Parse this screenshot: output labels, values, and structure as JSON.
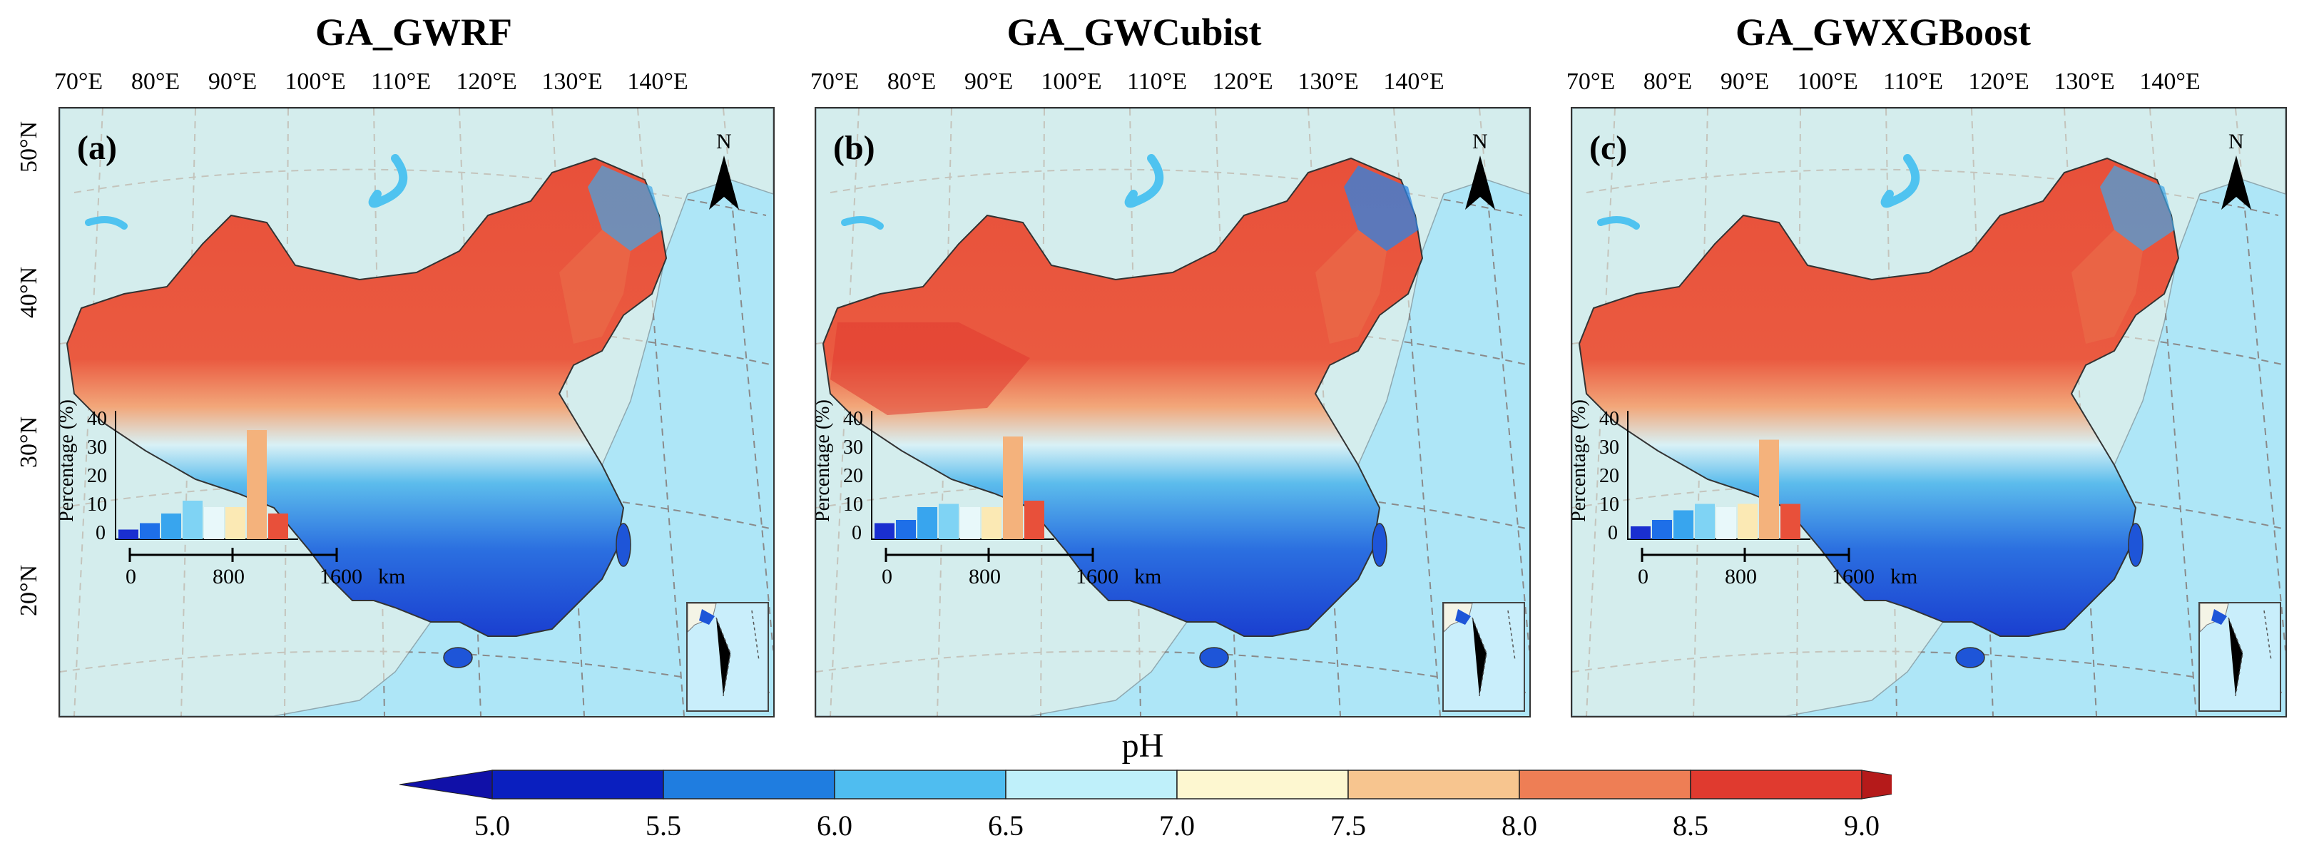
{
  "panels": [
    {
      "title": "GA_GWRF",
      "label": "(a)",
      "hist": [
        3,
        5,
        8,
        12,
        10,
        10,
        34,
        8
      ]
    },
    {
      "title": "GA_GWCubist",
      "label": "(b)",
      "hist": [
        5,
        6,
        10,
        11,
        10,
        10,
        32,
        12
      ]
    },
    {
      "title": "GA_GWXGBoost",
      "label": "(c)",
      "hist": [
        4,
        6,
        9,
        11,
        10,
        11,
        31,
        11
      ]
    }
  ],
  "longitude_labels": [
    "70°E",
    "80°E",
    "90°E",
    "100°E",
    "110°E",
    "120°E",
    "130°E",
    "140°E"
  ],
  "latitude_labels": [
    "50°N",
    "40°N",
    "30°N",
    "20°N"
  ],
  "north_label": "N",
  "histogram": {
    "ylabel": "Percentage (%)",
    "yticks": [
      "40",
      "30",
      "20",
      "10",
      "0"
    ],
    "ymax": 40,
    "bar_colors": [
      "#1a2fd0",
      "#1e6fe8",
      "#38a5ee",
      "#7fd3f4",
      "#e8f8fa",
      "#fbe9b4",
      "#f4b27c",
      "#e8503a"
    ]
  },
  "scalebar": {
    "labels": [
      "0",
      "800",
      "1600"
    ],
    "unit": "km"
  },
  "colorbar": {
    "title": "pH",
    "ticks": [
      "5.0",
      "5.5",
      "6.0",
      "6.5",
      "7.0",
      "7.5",
      "8.0",
      "8.5",
      "9.0"
    ],
    "colors": [
      "#0a1fbf",
      "#1f7de0",
      "#4fbdf0",
      "#bff0fa",
      "#fdf7d0",
      "#f7c58f",
      "#ee7e55",
      "#e03a2f"
    ],
    "low_color": "#1010a8",
    "high_color": "#b51a1a"
  }
}
